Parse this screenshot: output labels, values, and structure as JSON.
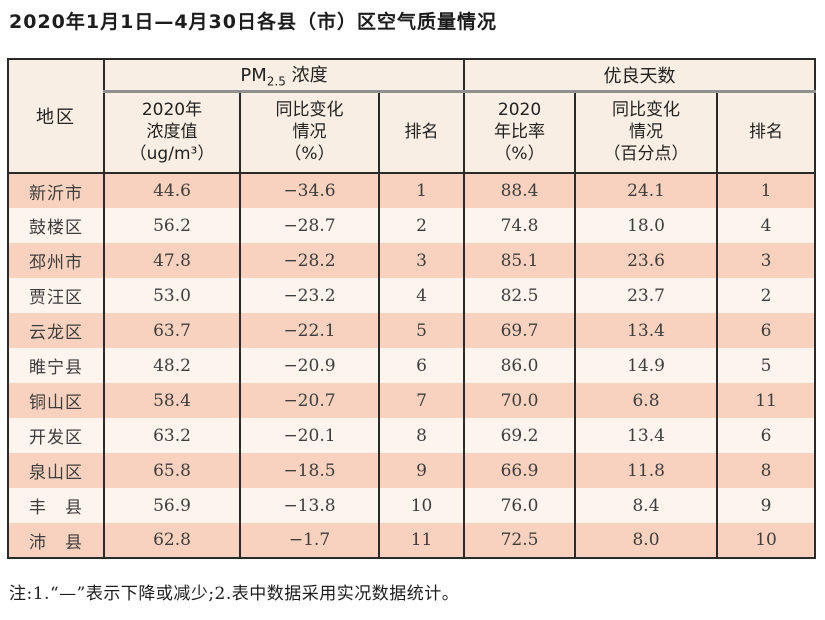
{
  "page": {
    "title": "2020年1月1日—4月30日各县（市）区空气质量情况",
    "footnote": "注:1.“—”表示下降或减少;2.表中数据采用实况数据统计。"
  },
  "table": {
    "region_header": "地区",
    "groups": {
      "pm25": {
        "prefix": "PM",
        "sub": "2.5",
        "suffix": " 浓度"
      },
      "good_days": {
        "label": "优良天数"
      }
    },
    "sub_headers": {
      "pm_value": "2020年\n浓度值\n（ug/m³）",
      "pm_yoy": "同比变化\n情况\n（%）",
      "pm_rank": "排名",
      "gd_ratio": "2020\n年比率\n（%）",
      "gd_yoy": "同比变化\n情况\n（百分点）",
      "gd_rank": "排名"
    },
    "rows": [
      [
        "新沂市",
        "44.6",
        "−34.6",
        "1",
        "88.4",
        "24.1",
        "1"
      ],
      [
        "鼓楼区",
        "56.2",
        "−28.7",
        "2",
        "74.8",
        "18.0",
        "4"
      ],
      [
        "邳州市",
        "47.8",
        "−28.2",
        "3",
        "85.1",
        "23.6",
        "3"
      ],
      [
        "贾汪区",
        "53.0",
        "−23.2",
        "4",
        "82.5",
        "23.7",
        "2"
      ],
      [
        "云龙区",
        "63.7",
        "−22.1",
        "5",
        "69.7",
        "13.4",
        "6"
      ],
      [
        "睢宁县",
        "48.2",
        "−20.9",
        "6",
        "86.0",
        "14.9",
        "5"
      ],
      [
        "铜山区",
        "58.4",
        "−20.7",
        "7",
        "70.0",
        "6.8",
        "11"
      ],
      [
        "开发区",
        "63.2",
        "−20.1",
        "8",
        "69.2",
        "13.4",
        "6"
      ],
      [
        "泉山区",
        "65.8",
        "−18.5",
        "9",
        "66.9",
        "11.8",
        "8"
      ],
      [
        "丰　县",
        "56.9",
        "−13.8",
        "10",
        "76.0",
        "8.4",
        "9"
      ],
      [
        "沛　县",
        "62.8",
        "−1.7",
        "11",
        "72.5",
        "8.0",
        "10"
      ]
    ],
    "colors": {
      "band_salmon": "#f8d2be",
      "band_cream": "#fdf4ed",
      "header_bg": "#f8eee3",
      "border_dark": "#2a2a2a",
      "group_underline": "#8f8f8f"
    }
  }
}
